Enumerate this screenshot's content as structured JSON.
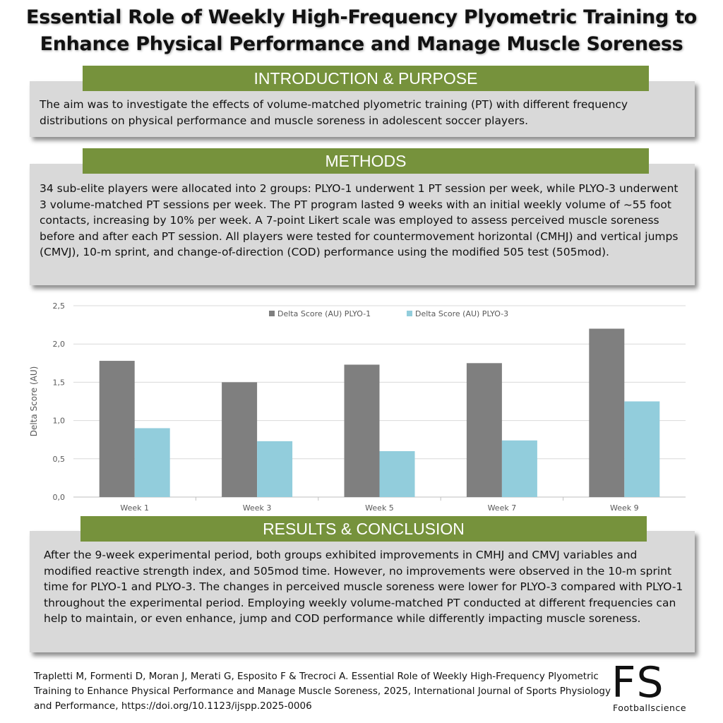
{
  "title": {
    "line1": "Essential Role of Weekly High-Frequency Plyometric Training to",
    "line2": "Enhance Physical Performance and Manage Muscle Soreness"
  },
  "sections": {
    "intro": {
      "heading": "INTRODUCTION & PURPOSE",
      "text": "The aim was to investigate the effects of volume-matched plyometric training (PT) with different frequency distributions on physical performance and muscle soreness in adolescent soccer players."
    },
    "methods": {
      "heading": "METHODS",
      "text": "34 sub-elite players were allocated into 2 groups: PLYO-1 underwent 1 PT session per week, while PLYO-3 underwent 3 volume-matched PT sessions per week. The PT program lasted 9 weeks with an initial weekly volume of ~55 foot contacts, increasing by 10% per week. A 7-point Likert scale was employed to assess perceived muscle soreness before and after each PT session. All players were tested for countermovement horizontal (CMHJ) and vertical jumps (CMVJ), 10-m sprint, and change-of-direction (COD) performance using the modified 505 test (505mod)."
    },
    "results": {
      "heading": "RESULTS & CONCLUSION",
      "text": "After the 9-week experimental period, both groups exhibited improvements in CMHJ and CMVJ variables and modified reactive strength index, and 505mod time. However, no improvements were observed in the 10-m sprint time for PLYO-1 and PLYO-3. The changes in perceived muscle soreness were lower for PLYO-3 compared with PLYO-1 throughout the experimental period. Employing weekly volume-matched PT conducted at different frequencies can help to maintain, or even enhance, jump and COD performance while differently impacting muscle soreness."
    }
  },
  "citation": "Trapletti M, Formenti D, Moran J, Merati G, Esposito F & Trecroci A. Essential Role of Weekly High-Frequency Plyometric Training to Enhance Physical Performance and Manage Muscle Soreness, 2025, International Journal of Sports Physiology and Performance, https://doi.org/10.1123/ijspp.2025-0006",
  "logo": {
    "letters": "FS",
    "subtitle": "Footballscience"
  },
  "colors": {
    "banner": "#76923c",
    "box": "#d9d9d9",
    "series1": "#7f7f7f",
    "series2": "#92cddc"
  },
  "chart_data": {
    "type": "bar",
    "categories": [
      "Week 1",
      "Week 3",
      "Week 5",
      "Week 7",
      "Week 9"
    ],
    "series": [
      {
        "name": "Delta Score (AU) PLYO-1",
        "values": [
          1.78,
          1.5,
          1.73,
          1.75,
          2.2
        ],
        "color": "#7f7f7f"
      },
      {
        "name": "Delta Score (AU) PLYO-3",
        "values": [
          0.9,
          0.73,
          0.6,
          0.74,
          1.25
        ],
        "color": "#92cddc"
      }
    ],
    "ylabel": "Delta Score (AU)",
    "xlabel": "",
    "ylim": [
      0,
      2.5
    ],
    "yticks": [
      "0,0",
      "0,5",
      "1,0",
      "1,5",
      "2,0",
      "2,5"
    ],
    "grid": true,
    "legend_position": "top"
  }
}
